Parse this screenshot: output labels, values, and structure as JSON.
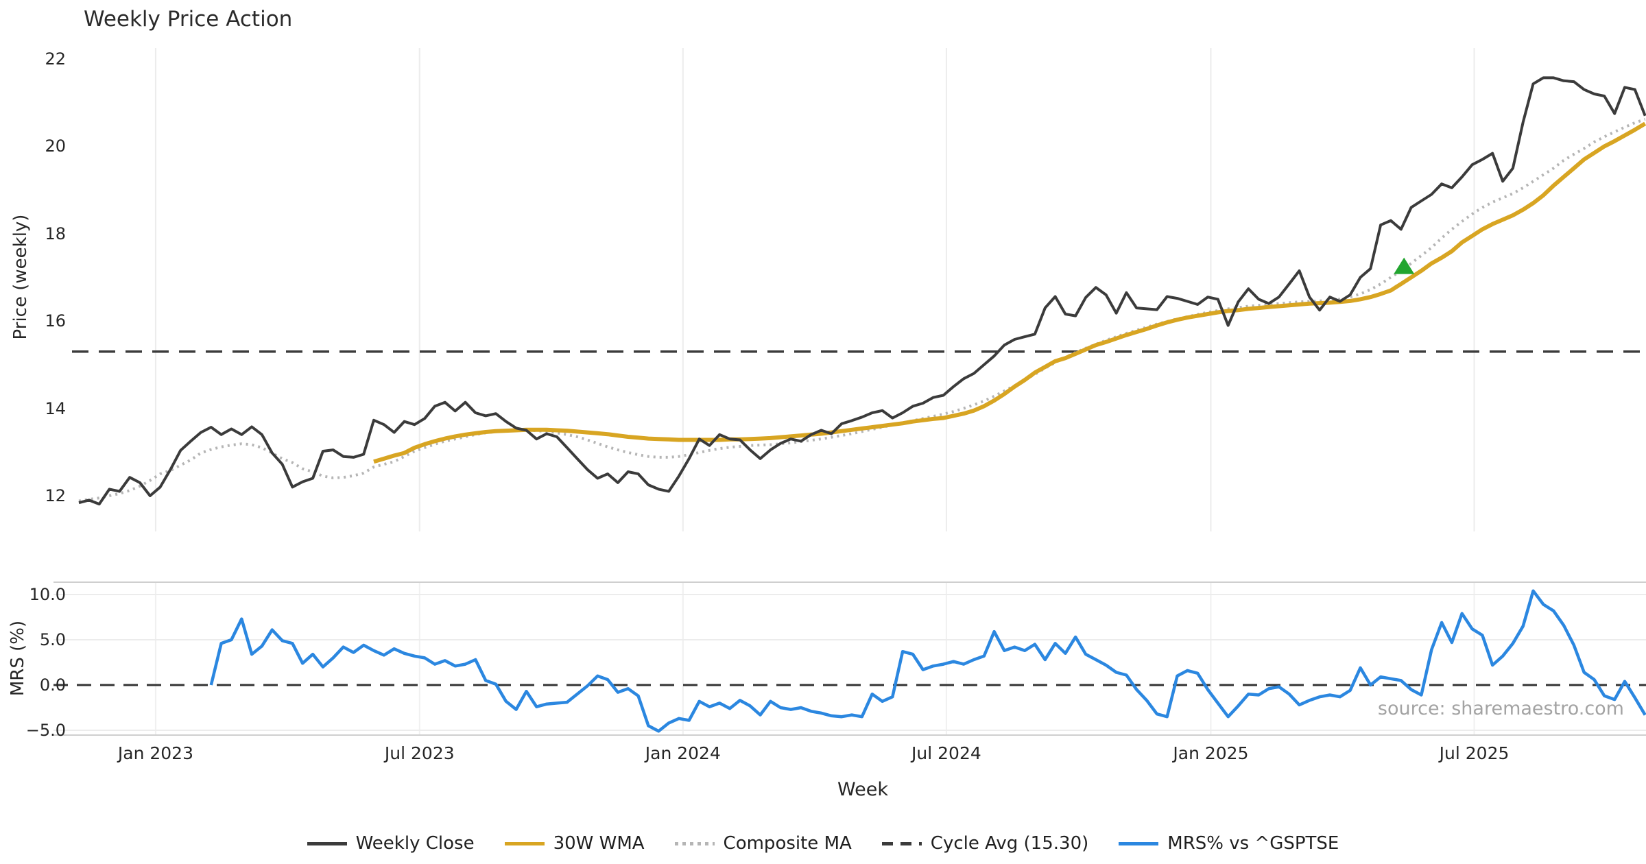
{
  "title": "Weekly Price Action",
  "source_note": "source: sharemaestro.com",
  "colors": {
    "weekly_close": "#3b3b3b",
    "wma_30w": "#D8A522",
    "composite_ma": "#b5b5b5",
    "cycle_avg": "#3b3b3b",
    "mrs": "#2b87e0",
    "signal_marker": "#22a52f",
    "grid": "#ececec",
    "grid_soft": "#f0f0f0",
    "spine": "#cfcfcf"
  },
  "legend": [
    {
      "label": "Weekly Close",
      "color": "#3b3b3b",
      "style": "solid"
    },
    {
      "label": "30W WMA",
      "color": "#D8A522",
      "style": "solid"
    },
    {
      "label": "Composite MA",
      "color": "#b5b5b5",
      "style": "dotted"
    },
    {
      "label": "Cycle Avg (15.30)",
      "color": "#3b3b3b",
      "style": "dashed"
    },
    {
      "label": "MRS% vs ^GSPTSE",
      "color": "#2b87e0",
      "style": "solid"
    }
  ],
  "chart_data": [
    {
      "type": "line",
      "panel": "price",
      "title": "Weekly Price Action",
      "ylabel": "Price (weekly)",
      "ylim": [
        11.2,
        22.25
      ],
      "grid": "vertical-only",
      "x_start_date": "2022-11-07",
      "x_freq": "weekly",
      "y_ticks": [
        {
          "label": "22",
          "value": 22
        },
        {
          "label": "20",
          "value": 20
        },
        {
          "label": "18",
          "value": 18
        },
        {
          "label": "16",
          "value": 16
        },
        {
          "label": "14",
          "value": 14
        },
        {
          "label": "12",
          "value": 12
        }
      ],
      "x_ticks": [
        {
          "label": "Jan 2023",
          "week": 7.55
        },
        {
          "label": "Jul 2023",
          "week": 33.5
        },
        {
          "label": "Jan 2024",
          "week": 59.4
        },
        {
          "label": "Jul 2024",
          "week": 85.3
        },
        {
          "label": "Jan 2025",
          "week": 111.3
        },
        {
          "label": "Jul 2025",
          "week": 137.2
        }
      ],
      "series": [
        {
          "name": "Composite MA",
          "style": "dotted",
          "color": "#b5b5b5",
          "values": [
            11.88,
            11.92,
            11.95,
            12.0,
            12.05,
            12.12,
            12.22,
            12.35,
            12.5,
            12.58,
            12.7,
            12.82,
            12.98,
            13.06,
            13.12,
            13.16,
            13.19,
            13.17,
            13.1,
            12.98,
            12.85,
            12.76,
            12.62,
            12.55,
            12.45,
            12.41,
            12.42,
            12.46,
            12.52,
            12.66,
            12.72,
            12.78,
            12.9,
            13.02,
            13.1,
            13.18,
            13.25,
            13.3,
            13.35,
            13.4,
            13.44,
            13.47,
            13.49,
            13.5,
            13.5,
            13.49,
            13.47,
            13.44,
            13.4,
            13.35,
            13.28,
            13.2,
            13.12,
            13.05,
            12.99,
            12.94,
            12.9,
            12.88,
            12.88,
            12.9,
            12.94,
            12.99,
            13.04,
            13.08,
            13.11,
            13.13,
            13.15,
            13.16,
            13.17,
            13.19,
            13.21,
            13.24,
            13.27,
            13.3,
            13.34,
            13.38,
            13.42,
            13.47,
            13.52,
            13.57,
            13.62,
            13.67,
            13.72,
            13.77,
            13.82,
            13.87,
            13.93,
            14.0,
            14.08,
            14.17,
            14.28,
            14.4,
            14.52,
            14.65,
            14.78,
            14.92,
            15.05,
            15.17,
            15.28,
            15.38,
            15.47,
            15.56,
            15.64,
            15.72,
            15.79,
            15.86,
            15.93,
            15.99,
            16.05,
            16.1,
            16.15,
            16.2,
            16.24,
            16.28,
            16.31,
            16.34,
            16.36,
            16.38,
            16.4,
            16.42,
            16.44,
            16.45,
            16.46,
            16.48,
            16.5,
            16.55,
            16.62,
            16.72,
            16.85,
            17.0,
            17.15,
            17.32,
            17.5,
            17.68,
            17.9,
            18.1,
            18.28,
            18.45,
            18.6,
            18.72,
            18.82,
            18.92,
            19.05,
            19.2,
            19.35,
            19.5,
            19.68,
            19.82,
            19.95,
            20.1,
            20.22,
            20.33,
            20.44,
            20.54,
            20.62
          ]
        },
        {
          "name": "30W WMA",
          "style": "solid",
          "color": "#D8A522",
          "width": 6,
          "values": [
            null,
            null,
            null,
            null,
            null,
            null,
            null,
            null,
            null,
            null,
            null,
            null,
            null,
            null,
            null,
            null,
            null,
            null,
            null,
            null,
            null,
            null,
            null,
            null,
            null,
            null,
            null,
            null,
            null,
            12.78,
            12.85,
            12.92,
            12.98,
            13.1,
            13.18,
            13.25,
            13.31,
            13.36,
            13.4,
            13.43,
            13.46,
            13.48,
            13.49,
            13.5,
            13.51,
            13.51,
            13.51,
            13.5,
            13.49,
            13.47,
            13.45,
            13.43,
            13.41,
            13.38,
            13.35,
            13.33,
            13.31,
            13.3,
            13.29,
            13.28,
            13.28,
            13.28,
            13.28,
            13.28,
            13.29,
            13.29,
            13.3,
            13.31,
            13.32,
            13.34,
            13.36,
            13.38,
            13.4,
            13.42,
            13.45,
            13.48,
            13.51,
            13.54,
            13.57,
            13.6,
            13.63,
            13.66,
            13.7,
            13.73,
            13.76,
            13.78,
            13.83,
            13.88,
            13.95,
            14.05,
            14.18,
            14.33,
            14.5,
            14.65,
            14.82,
            14.95,
            15.08,
            15.15,
            15.25,
            15.35,
            15.45,
            15.52,
            15.6,
            15.68,
            15.75,
            15.82,
            15.9,
            15.97,
            16.03,
            16.08,
            16.12,
            16.16,
            16.2,
            16.23,
            16.25,
            16.28,
            16.3,
            16.32,
            16.34,
            16.36,
            16.38,
            16.4,
            16.41,
            16.42,
            16.44,
            16.46,
            16.5,
            16.55,
            16.62,
            16.7,
            16.85,
            17.0,
            17.15,
            17.32,
            17.45,
            17.6,
            17.8,
            17.95,
            18.1,
            18.22,
            18.32,
            18.42,
            18.55,
            18.7,
            18.88,
            19.1,
            19.3,
            19.5,
            19.7,
            19.85,
            20.0,
            20.12,
            20.25,
            20.38,
            20.52
          ]
        },
        {
          "name": "Weekly Close",
          "style": "solid",
          "color": "#3b3b3b",
          "values": [
            11.84,
            11.9,
            11.81,
            12.15,
            12.1,
            12.42,
            12.3,
            12.0,
            12.2,
            12.6,
            13.04,
            13.25,
            13.45,
            13.57,
            13.4,
            13.53,
            13.4,
            13.58,
            13.4,
            12.98,
            12.72,
            12.2,
            12.32,
            12.4,
            13.02,
            13.05,
            12.9,
            12.88,
            12.95,
            13.73,
            13.63,
            13.45,
            13.7,
            13.63,
            13.77,
            14.05,
            14.14,
            13.94,
            14.14,
            13.9,
            13.83,
            13.88,
            13.7,
            13.55,
            13.5,
            13.3,
            13.42,
            13.35,
            13.1,
            12.85,
            12.6,
            12.4,
            12.5,
            12.3,
            12.55,
            12.5,
            12.25,
            12.15,
            12.1,
            12.45,
            12.85,
            13.3,
            13.15,
            13.4,
            13.3,
            13.28,
            13.05,
            12.85,
            13.05,
            13.2,
            13.3,
            13.25,
            13.4,
            13.5,
            13.42,
            13.65,
            13.72,
            13.8,
            13.9,
            13.95,
            13.78,
            13.9,
            14.05,
            14.12,
            14.25,
            14.3,
            14.5,
            14.68,
            14.8,
            15.0,
            15.2,
            15.45,
            15.58,
            15.64,
            15.7,
            16.3,
            16.56,
            16.16,
            16.12,
            16.54,
            16.77,
            16.6,
            16.18,
            16.65,
            16.3,
            16.28,
            16.26,
            16.56,
            16.52,
            16.45,
            16.38,
            16.55,
            16.5,
            15.9,
            16.44,
            16.74,
            16.5,
            16.4,
            16.55,
            16.85,
            17.15,
            16.55,
            16.25,
            16.55,
            16.45,
            16.6,
            17.0,
            17.2,
            18.2,
            18.3,
            18.1,
            18.6,
            18.75,
            18.9,
            19.14,
            19.05,
            19.3,
            19.58,
            19.7,
            19.84,
            19.2,
            19.5,
            20.55,
            21.43,
            21.57,
            21.57,
            21.5,
            21.48,
            21.3,
            21.2,
            21.15,
            20.75,
            21.35,
            21.3,
            20.7
          ]
        },
        {
          "name": "Cycle Avg (15.30)",
          "type": "hline",
          "style": "dashed",
          "color": "#3b3b3b",
          "value": 15.3
        }
      ],
      "annotations": [
        {
          "type": "triangle-up-marker",
          "week": 130.3,
          "value": 17.25,
          "color": "#22a52f",
          "meaning": "signal marker"
        }
      ]
    },
    {
      "type": "line",
      "panel": "mrs",
      "ylabel": "MRS (%)",
      "xlabel": "Week",
      "ylim": [
        -5.5,
        11.4
      ],
      "grid": "full",
      "y_ticks": [
        {
          "label": "10.0",
          "value": 10
        },
        {
          "label": "5.0",
          "value": 5
        },
        {
          "label": "0.0",
          "value": 0
        },
        {
          "label": "−5.0",
          "value": -5
        }
      ],
      "series": [
        {
          "name": "MRS% vs ^GSPTSE",
          "style": "solid",
          "color": "#2b87e0",
          "values": [
            null,
            null,
            null,
            null,
            null,
            null,
            null,
            null,
            null,
            null,
            null,
            null,
            null,
            0.0,
            4.6,
            5.0,
            7.3,
            3.4,
            4.3,
            6.1,
            4.9,
            4.6,
            2.4,
            3.4,
            2.0,
            3.0,
            4.2,
            3.6,
            4.4,
            3.8,
            3.3,
            4.0,
            3.5,
            3.2,
            3.0,
            2.3,
            2.7,
            2.1,
            2.3,
            2.8,
            0.5,
            0.1,
            -1.8,
            -2.7,
            -0.7,
            -2.4,
            -2.1,
            -2.0,
            -1.9,
            -1.0,
            -0.1,
            1.0,
            0.6,
            -0.8,
            -0.4,
            -1.2,
            -4.5,
            -5.1,
            -4.2,
            -3.7,
            -3.9,
            -1.8,
            -2.4,
            -2.0,
            -2.6,
            -1.7,
            -2.3,
            -3.3,
            -1.8,
            -2.5,
            -2.7,
            -2.5,
            -2.9,
            -3.1,
            -3.4,
            -3.5,
            -3.3,
            -3.5,
            -1.0,
            -1.8,
            -1.3,
            3.7,
            3.4,
            1.7,
            2.1,
            2.3,
            2.6,
            2.3,
            2.8,
            3.2,
            5.9,
            3.8,
            4.2,
            3.8,
            4.5,
            2.8,
            4.6,
            3.5,
            5.3,
            3.4,
            2.8,
            2.2,
            1.4,
            1.1,
            -0.5,
            -1.7,
            -3.2,
            -3.5,
            1.0,
            1.6,
            1.3,
            -0.5,
            -2.0,
            -3.5,
            -2.3,
            -1.0,
            -1.1,
            -0.4,
            -0.2,
            -1.0,
            -2.2,
            -1.7,
            -1.3,
            -1.1,
            -1.3,
            -0.6,
            1.9,
            0.0,
            0.9,
            0.7,
            0.5,
            -0.5,
            -1.1,
            3.9,
            6.9,
            4.7,
            7.9,
            6.2,
            5.5,
            2.2,
            3.2,
            4.6,
            6.5,
            10.4,
            8.9,
            8.2,
            6.6,
            4.4,
            1.4,
            0.6,
            -1.2,
            -1.6,
            0.4,
            -1.4,
            -3.3
          ]
        },
        {
          "name": "zero-line",
          "type": "hline",
          "style": "dashed",
          "color": "#333333",
          "value": 0.0
        }
      ]
    }
  ]
}
